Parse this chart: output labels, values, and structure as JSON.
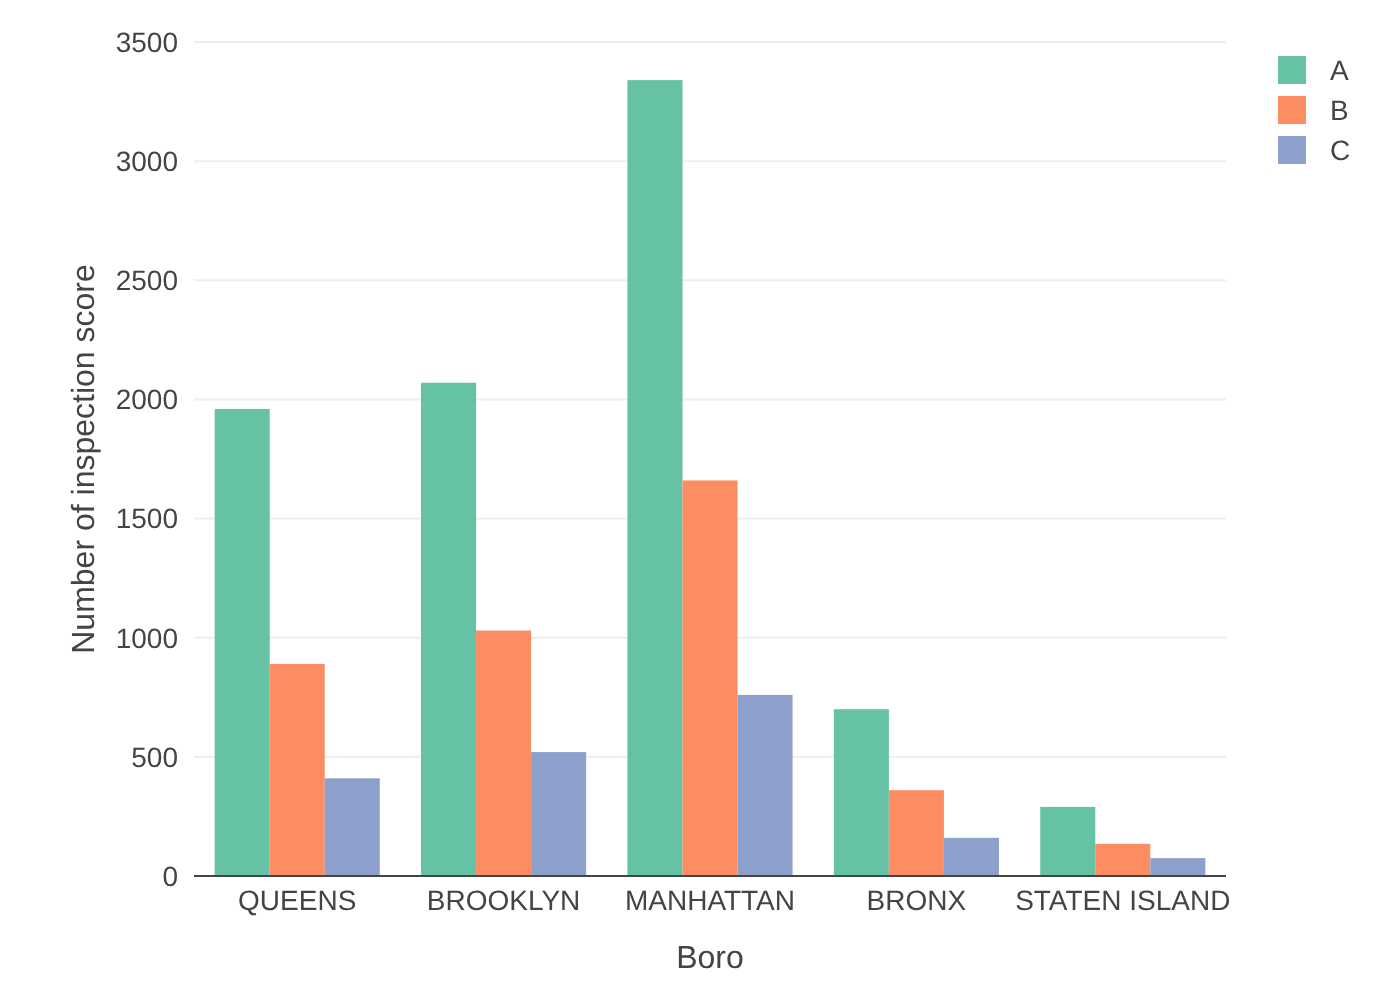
{
  "chart_data": {
    "type": "bar",
    "xlabel": "Boro",
    "ylabel": "Number of inspection score",
    "categories": [
      "QUEENS",
      "BROOKLYN",
      "MANHATTAN",
      "BRONX",
      "STATEN ISLAND"
    ],
    "series": [
      {
        "name": "A",
        "color": "#66c2a5",
        "values": [
          1960,
          2070,
          3340,
          700,
          290
        ]
      },
      {
        "name": "B",
        "color": "#fc8d62",
        "values": [
          890,
          1030,
          1660,
          360,
          135
        ]
      },
      {
        "name": "C",
        "color": "#8da0cb",
        "values": [
          410,
          520,
          760,
          160,
          75
        ]
      }
    ],
    "ylim": [
      0,
      3500
    ],
    "yticks": [
      0,
      500,
      1000,
      1500,
      2000,
      2500,
      3000,
      3500
    ],
    "grid": "y",
    "legend": "top right"
  }
}
